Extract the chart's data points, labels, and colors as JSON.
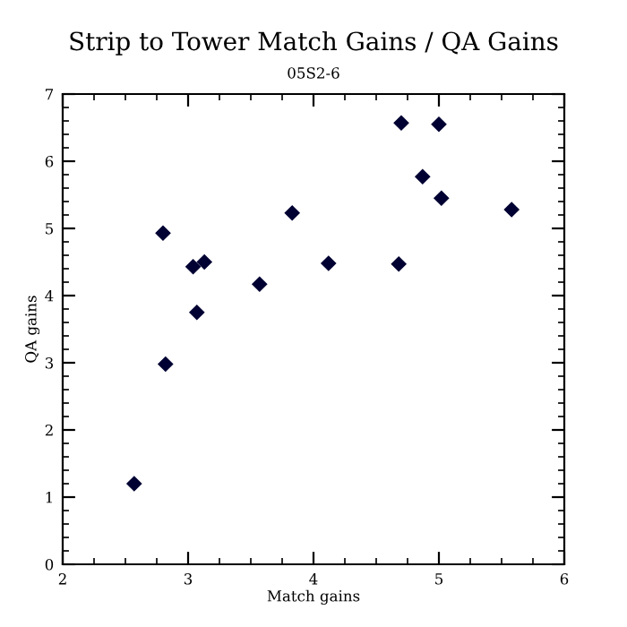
{
  "chart_data": {
    "type": "scatter",
    "title": "Strip to Tower Match Gains / QA Gains",
    "subtitle": "05S2-6",
    "xlabel": "Match gains",
    "ylabel": "QA gains",
    "x": [
      2.57,
      2.8,
      2.82,
      3.04,
      3.07,
      3.13,
      3.57,
      3.83,
      4.12,
      4.68,
      4.7,
      4.87,
      5.0,
      5.02,
      5.58
    ],
    "series": [
      {
        "color": "#000033",
        "values": [
          1.2,
          4.93,
          2.98,
          4.43,
          3.75,
          4.5,
          4.17,
          5.23,
          4.48,
          4.47,
          6.57,
          5.77,
          6.55,
          5.45,
          5.28
        ]
      }
    ],
    "xlim": [
      2,
      6
    ],
    "xticks": [
      2,
      3,
      4,
      5,
      6
    ],
    "ylim": [
      0,
      7
    ],
    "yticks": [
      0,
      1,
      2,
      3,
      4,
      5,
      6,
      7
    ],
    "marker": "diamond",
    "grid": false,
    "legend": false
  }
}
